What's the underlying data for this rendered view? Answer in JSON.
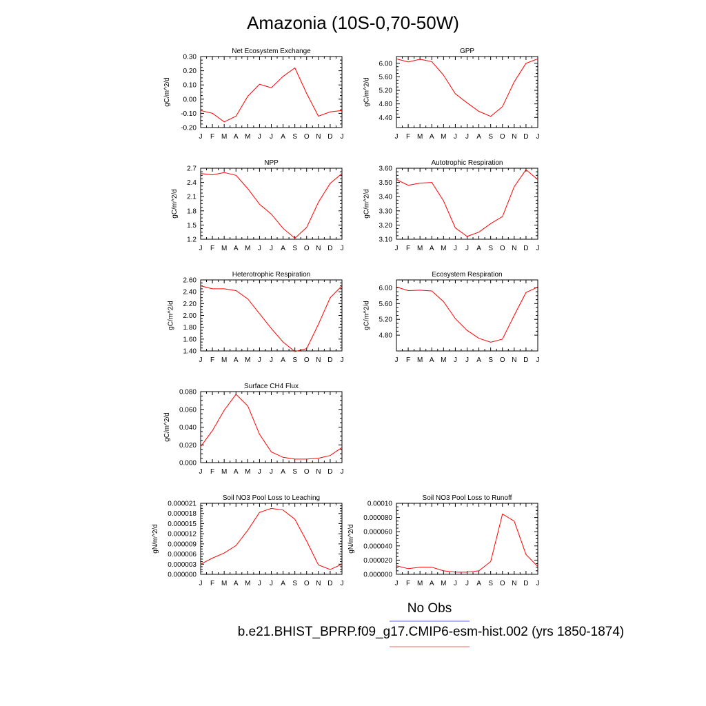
{
  "figure": {
    "title": "Amazonia (10S-0,70-50W)",
    "legend": [
      {
        "label": "No Obs",
        "color": "#8080ff"
      },
      {
        "label": "b.e21.BHIST_BPRP.f09_g17.CMIP6-esm-hist.002 (yrs 1850-1874)",
        "color": "#ff8080"
      }
    ],
    "line_color": "#ff0000"
  },
  "chart_data": [
    {
      "type": "line",
      "title": "Net Ecosystem Exchange",
      "ylabel": "gC/m^2/d",
      "categories": [
        "J",
        "F",
        "M",
        "A",
        "M",
        "J",
        "J",
        "A",
        "S",
        "O",
        "N",
        "D",
        "J"
      ],
      "ylim": [
        -0.2,
        0.3
      ],
      "yticks": [
        -0.2,
        -0.1,
        0.0,
        0.1,
        0.2,
        0.3
      ],
      "ytick_labels": [
        "-0.20",
        "-0.10",
        "0.00",
        "0.10",
        "0.20",
        "0.30"
      ],
      "series": [
        {
          "values": [
            -0.08,
            -0.1,
            -0.16,
            -0.12,
            0.02,
            0.105,
            0.08,
            0.16,
            0.22,
            0.04,
            -0.12,
            -0.09,
            -0.08
          ]
        }
      ]
    },
    {
      "type": "line",
      "title": "GPP",
      "ylabel": "gC/m^2/d",
      "categories": [
        "J",
        "F",
        "M",
        "A",
        "M",
        "J",
        "J",
        "A",
        "S",
        "O",
        "N",
        "D",
        "J"
      ],
      "ylim": [
        4.1,
        6.2
      ],
      "yticks": [
        4.4,
        4.8,
        5.2,
        5.6,
        6.0
      ],
      "ytick_labels": [
        "4.40",
        "4.80",
        "5.20",
        "5.60",
        "6.00"
      ],
      "series": [
        {
          "values": [
            6.13,
            6.04,
            6.12,
            6.05,
            5.65,
            5.1,
            4.83,
            4.58,
            4.43,
            4.72,
            5.45,
            6.0,
            6.13
          ]
        }
      ]
    },
    {
      "type": "line",
      "title": "NPP",
      "ylabel": "gC/m^2/d",
      "categories": [
        "J",
        "F",
        "M",
        "A",
        "M",
        "J",
        "J",
        "A",
        "S",
        "O",
        "N",
        "D",
        "J"
      ],
      "ylim": [
        1.2,
        2.7
      ],
      "yticks": [
        1.2,
        1.5,
        1.8,
        2.1,
        2.4,
        2.7
      ],
      "ytick_labels": [
        "1.2",
        "1.5",
        "1.8",
        "2.1",
        "2.4",
        "2.7"
      ],
      "series": [
        {
          "values": [
            2.59,
            2.56,
            2.61,
            2.55,
            2.27,
            1.94,
            1.73,
            1.43,
            1.22,
            1.45,
            1.98,
            2.38,
            2.59
          ]
        }
      ]
    },
    {
      "type": "line",
      "title": "Autotrophic Respiration",
      "ylabel": "gC/m^2/d",
      "categories": [
        "J",
        "F",
        "M",
        "A",
        "M",
        "J",
        "J",
        "A",
        "S",
        "O",
        "N",
        "D",
        "J"
      ],
      "ylim": [
        3.1,
        3.6
      ],
      "yticks": [
        3.1,
        3.2,
        3.3,
        3.4,
        3.5,
        3.6
      ],
      "ytick_labels": [
        "3.10",
        "3.20",
        "3.30",
        "3.40",
        "3.50",
        "3.60"
      ],
      "series": [
        {
          "values": [
            3.52,
            3.48,
            3.495,
            3.5,
            3.37,
            3.18,
            3.12,
            3.15,
            3.21,
            3.26,
            3.47,
            3.59,
            3.52
          ]
        }
      ]
    },
    {
      "type": "line",
      "title": "Heterotrophic Respiration",
      "ylabel": "gC/m^2/d",
      "categories": [
        "J",
        "F",
        "M",
        "A",
        "M",
        "J",
        "J",
        "A",
        "S",
        "O",
        "N",
        "D",
        "J"
      ],
      "ylim": [
        1.4,
        2.6
      ],
      "yticks": [
        1.4,
        1.6,
        1.8,
        2.0,
        2.2,
        2.4,
        2.6
      ],
      "ytick_labels": [
        "1.40",
        "1.60",
        "1.80",
        "2.00",
        "2.20",
        "2.40",
        "2.60"
      ],
      "series": [
        {
          "values": [
            2.5,
            2.45,
            2.45,
            2.42,
            2.28,
            2.03,
            1.78,
            1.55,
            1.39,
            1.44,
            1.85,
            2.3,
            2.5
          ]
        }
      ]
    },
    {
      "type": "line",
      "title": "Ecosystem Respiration",
      "ylabel": "gC/m^2/d",
      "categories": [
        "J",
        "F",
        "M",
        "A",
        "M",
        "J",
        "J",
        "A",
        "S",
        "O",
        "N",
        "D",
        "J"
      ],
      "ylim": [
        4.4,
        6.2
      ],
      "yticks": [
        4.8,
        5.2,
        5.6,
        6.0
      ],
      "ytick_labels": [
        "4.80",
        "5.20",
        "5.60",
        "6.00"
      ],
      "series": [
        {
          "values": [
            6.02,
            5.93,
            5.94,
            5.92,
            5.65,
            5.22,
            4.92,
            4.72,
            4.62,
            4.7,
            5.3,
            5.88,
            6.02
          ]
        }
      ]
    },
    {
      "type": "line",
      "title": "Surface CH4 Flux",
      "ylabel": "gC/m^2/d",
      "categories": [
        "J",
        "F",
        "M",
        "A",
        "M",
        "J",
        "J",
        "A",
        "S",
        "O",
        "N",
        "D",
        "J"
      ],
      "ylim": [
        0.0,
        0.08
      ],
      "yticks": [
        0.0,
        0.02,
        0.04,
        0.06,
        0.08
      ],
      "ytick_labels": [
        "0.000",
        "0.020",
        "0.040",
        "0.060",
        "0.080"
      ],
      "series": [
        {
          "values": [
            0.018,
            0.036,
            0.059,
            0.077,
            0.064,
            0.032,
            0.012,
            0.006,
            0.004,
            0.004,
            0.005,
            0.008,
            0.017
          ]
        }
      ]
    },
    {
      "type": "line",
      "title": "Soil NO3 Pool Loss to Leaching",
      "ylabel": "gN/m^2/d",
      "categories": [
        "J",
        "F",
        "M",
        "A",
        "M",
        "J",
        "J",
        "A",
        "S",
        "O",
        "N",
        "D",
        "J"
      ],
      "ylim": [
        0.0,
        2.1e-05
      ],
      "yticks": [
        0.0,
        3e-06,
        6e-06,
        9e-06,
        1.2e-05,
        1.5e-05,
        1.8e-05,
        2.1e-05
      ],
      "ytick_labels": [
        "0.000000",
        "0.000003",
        "0.000006",
        "0.000009",
        "0.000012",
        "0.000015",
        "0.000018",
        "0.000021"
      ],
      "series": [
        {
          "values": [
            3e-06,
            4.8e-06,
            6.3e-06,
            8.5e-06,
            1.3e-05,
            1.83e-05,
            1.95e-05,
            1.9e-05,
            1.63e-05,
            9.8e-06,
            2.8e-06,
            1.4e-06,
            3e-06
          ]
        }
      ]
    },
    {
      "type": "line",
      "title": "Soil NO3 Pool Loss to Runoff",
      "ylabel": "gN/m^2/d",
      "categories": [
        "J",
        "F",
        "M",
        "A",
        "M",
        "J",
        "J",
        "A",
        "S",
        "O",
        "N",
        "D",
        "J"
      ],
      "ylim": [
        0.0,
        0.0001
      ],
      "yticks": [
        0.0,
        2e-05,
        4e-05,
        6e-05,
        8e-05,
        0.0001
      ],
      "ytick_labels": [
        "0.000000",
        "0.000020",
        "0.000040",
        "0.000060",
        "0.000080",
        "0.00010"
      ],
      "series": [
        {
          "values": [
            1.2e-05,
            8e-06,
            1e-05,
            1e-05,
            5e-06,
            3e-06,
            3e-06,
            5e-06,
            1.8e-05,
            8.5e-05,
            7.5e-05,
            2.8e-05,
            1.1e-05
          ]
        }
      ]
    }
  ]
}
